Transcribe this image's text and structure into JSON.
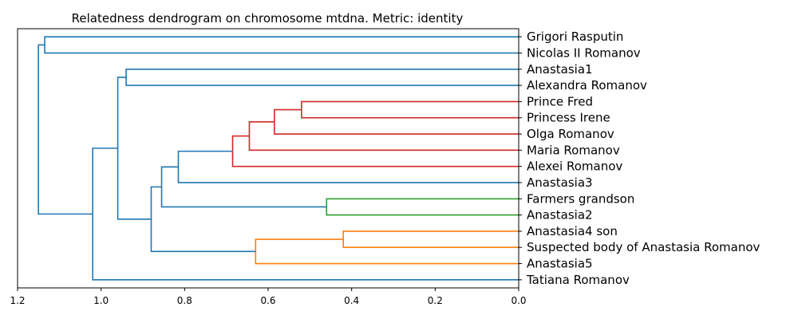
{
  "chart_data": {
    "type": "dendrogram",
    "title": "Relatedness dendrogram on chromosome mtdna. Metric: identity",
    "orientation": "left",
    "xlim": [
      1.2,
      0.0
    ],
    "xticks": [
      1.2,
      1.0,
      0.8,
      0.6,
      0.4,
      0.2,
      0.0
    ],
    "xtick_labels": [
      "1.2",
      "1.0",
      "0.8",
      "0.6",
      "0.4",
      "0.2",
      "0.0"
    ],
    "leaves": [
      "Grigori Rasputin",
      "Nicolas II Romanov",
      "Anastasia1",
      "Alexandra Romanov",
      "Prince Fred",
      "Princess Irene",
      "Olga Romanov",
      "Maria Romanov",
      "Alexei Romanov",
      "Anastasia3",
      "Farmers grandson",
      "Anastasia2",
      "Anastasia4 son",
      "Suspected body of Anastasia Romanov",
      "Anastasia5",
      "Tatiana Romanov"
    ],
    "colors": {
      "default": "#1f77b4",
      "red": "#d62728",
      "green": "#2ca02c",
      "orange": "#ff7f0e"
    },
    "merges": [
      {
        "left": "L4",
        "right": "L5",
        "height": 0.52,
        "color": "red"
      },
      {
        "left": "M0",
        "right": "L6",
        "height": 0.585,
        "color": "red"
      },
      {
        "left": "M1",
        "right": "L7",
        "height": 0.645,
        "color": "red"
      },
      {
        "left": "M2",
        "right": "L8",
        "height": 0.685,
        "color": "red"
      },
      {
        "left": "M3",
        "right": "L9",
        "height": 0.815,
        "color": "default"
      },
      {
        "left": "L10",
        "right": "L11",
        "height": 0.46,
        "color": "green"
      },
      {
        "left": "M4",
        "right": "M5",
        "height": 0.855,
        "color": "default"
      },
      {
        "left": "L12",
        "right": "L13",
        "height": 0.42,
        "color": "orange"
      },
      {
        "left": "M7",
        "right": "L14",
        "height": 0.63,
        "color": "orange"
      },
      {
        "left": "M6",
        "right": "M8",
        "height": 0.88,
        "color": "default"
      },
      {
        "left": "L2",
        "right": "L3",
        "height": 0.94,
        "color": "default"
      },
      {
        "left": "M10",
        "right": "M9",
        "height": 0.96,
        "color": "default"
      },
      {
        "left": "M11",
        "right": "L15",
        "height": 1.02,
        "color": "default"
      },
      {
        "left": "L0",
        "right": "L1",
        "height": 1.135,
        "color": "default"
      },
      {
        "left": "M13",
        "right": "M12",
        "height": 1.15,
        "color": "default"
      }
    ]
  }
}
